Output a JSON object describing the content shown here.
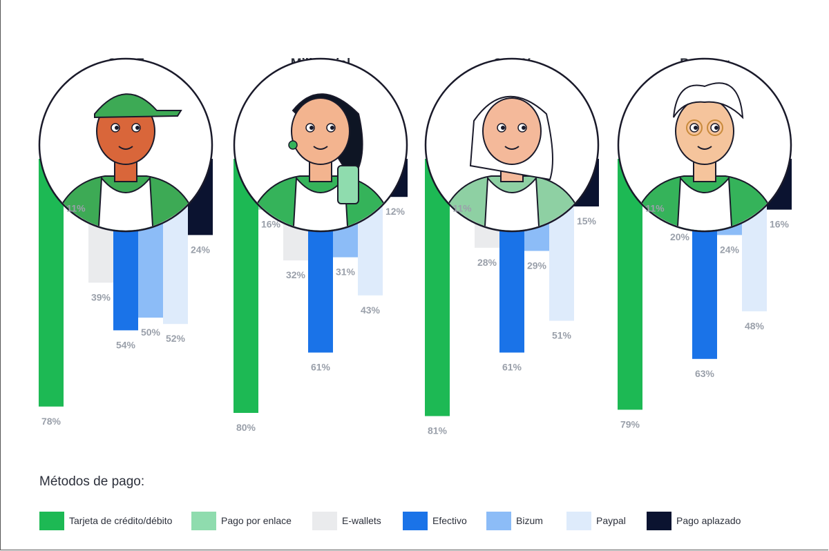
{
  "chart_data": {
    "type": "bar",
    "orientation": "vertical-downward",
    "legend_title": "Métodos de pago:",
    "series": [
      {
        "name": "Tarjeta de crédito/débito",
        "color": "#1db954"
      },
      {
        "name": "Pago por enlace",
        "color": "#8fdcae"
      },
      {
        "name": "E-wallets",
        "color": "#eaebed"
      },
      {
        "name": "Efectivo",
        "color": "#1a73e8"
      },
      {
        "name": "Bizum",
        "color": "#8cbcf7"
      },
      {
        "name": "Paypal",
        "color": "#deebfb"
      },
      {
        "name": "Pago aplazado",
        "color": "#0b1330"
      }
    ],
    "groups": [
      {
        "name": "Gen Z",
        "values": [
          78,
          11,
          39,
          54,
          50,
          52,
          24
        ],
        "labels": [
          "78%",
          "11%",
          "39%",
          "54%",
          "50%",
          "52%",
          "24%"
        ]
      },
      {
        "name": "Millennial",
        "values": [
          80,
          16,
          32,
          61,
          31,
          43,
          12
        ],
        "labels": [
          "80%",
          "16%",
          "32%",
          "61%",
          "31%",
          "43%",
          "12%"
        ]
      },
      {
        "name": "Gen X",
        "values": [
          81,
          11,
          28,
          61,
          29,
          51,
          15
        ],
        "labels": [
          "81%",
          "11%",
          "28%",
          "61%",
          "29%",
          "51%",
          "15%"
        ]
      },
      {
        "name": "Boomer",
        "values": [
          79,
          11,
          20,
          63,
          24,
          48,
          16
        ],
        "labels": [
          "79%",
          "11%",
          "20%",
          "63%",
          "24%",
          "48%",
          "16%"
        ]
      }
    ],
    "illustrations": [
      "young-man-cap-icon",
      "woman-phone-icon",
      "woman-white-hair-icon",
      "old-man-glasses-icon"
    ]
  }
}
